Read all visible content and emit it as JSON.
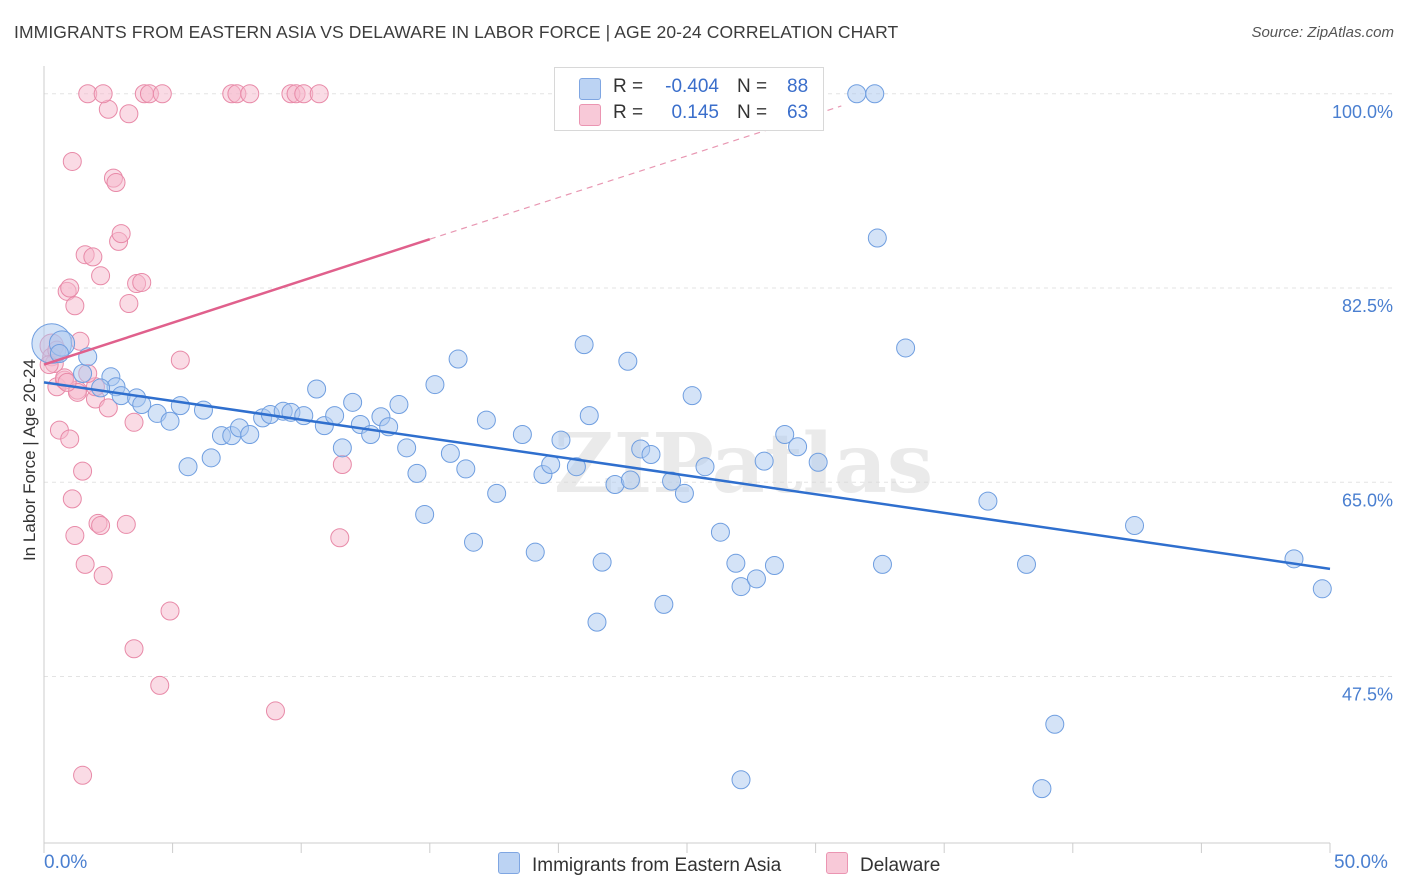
{
  "title": "IMMIGRANTS FROM EASTERN ASIA VS DELAWARE IN LABOR FORCE | AGE 20-24 CORRELATION CHART",
  "source": "Source: ZipAtlas.com",
  "watermark": "ZIPatlas",
  "legend": {
    "series1": {
      "r_label": "R =",
      "r_value": "-0.404",
      "n_label": "N =",
      "n_value": "88"
    },
    "series2": {
      "r_label": "R =",
      "r_value": "0.145",
      "n_label": "N =",
      "n_value": "63"
    }
  },
  "colors": {
    "blue_fill": "#a9c7ef",
    "blue_stroke": "#6f9ee0",
    "blue_line": "#2f6fce",
    "pink_fill": "#f5b8cb",
    "pink_stroke": "#e88aa8",
    "pink_line": "#e0608c",
    "grid": "#e3e3e3",
    "tick_text": "#4a7fd0"
  },
  "chart_data": {
    "type": "scatter",
    "title": "IMMIGRANTS FROM EASTERN ASIA VS DELAWARE IN LABOR FORCE | AGE 20-24 CORRELATION CHART",
    "xlabel": "",
    "ylabel": "In Labor Force | Age 20-24",
    "xlim": [
      0,
      50
    ],
    "ylim": [
      32.5,
      102.5
    ],
    "x_tick_labels": [
      "0.0%",
      "50.0%"
    ],
    "y_ticks": [
      100.0,
      82.5,
      65.0,
      47.5
    ],
    "y_tick_labels": [
      "100.0%",
      "82.5%",
      "65.0%",
      "47.5%"
    ],
    "series": [
      {
        "name": "Immigrants from Eastern Asia",
        "color": "blue",
        "trend": {
          "x0": 0.0,
          "y0": 74.0,
          "x1": 50.0,
          "y1": 57.2
        },
        "points": [
          [
            0.3,
            77.5,
            2.2
          ],
          [
            0.7,
            77.5,
            1.4
          ],
          [
            1.5,
            74.8,
            1
          ],
          [
            2.6,
            74.5,
            1
          ],
          [
            2.8,
            73.6,
            1
          ],
          [
            3.0,
            72.8,
            1
          ],
          [
            3.6,
            72.6,
            1
          ],
          [
            3.8,
            72.0,
            1
          ],
          [
            4.4,
            71.2,
            1
          ],
          [
            4.9,
            70.5,
            1
          ],
          [
            5.3,
            71.9,
            1
          ],
          [
            5.6,
            66.4,
            1
          ],
          [
            6.2,
            71.5,
            1
          ],
          [
            6.5,
            67.2,
            1
          ],
          [
            6.9,
            69.2,
            1
          ],
          [
            7.3,
            69.2,
            1
          ],
          [
            7.6,
            69.9,
            1
          ],
          [
            8.0,
            69.3,
            1
          ],
          [
            8.5,
            70.8,
            1
          ],
          [
            8.8,
            71.1,
            1
          ],
          [
            9.3,
            71.4,
            1
          ],
          [
            9.6,
            71.3,
            1
          ],
          [
            10.1,
            71.0,
            1
          ],
          [
            10.6,
            73.4,
            1
          ],
          [
            10.9,
            70.1,
            1
          ],
          [
            11.3,
            71.0,
            1
          ],
          [
            11.6,
            68.1,
            1
          ],
          [
            12.0,
            72.2,
            1
          ],
          [
            12.3,
            70.2,
            1
          ],
          [
            12.7,
            69.3,
            1
          ],
          [
            13.1,
            70.9,
            1
          ],
          [
            13.4,
            70.0,
            1
          ],
          [
            13.8,
            72.0,
            1
          ],
          [
            14.1,
            68.1,
            1
          ],
          [
            14.5,
            65.8,
            1
          ],
          [
            14.8,
            62.1,
            1
          ],
          [
            15.2,
            73.8,
            1
          ],
          [
            15.8,
            67.6,
            1
          ],
          [
            16.1,
            76.1,
            1
          ],
          [
            16.4,
            66.2,
            1
          ],
          [
            16.7,
            59.6,
            1
          ],
          [
            17.2,
            70.6,
            1
          ],
          [
            17.6,
            64.0,
            1
          ],
          [
            18.6,
            69.3,
            1
          ],
          [
            19.1,
            58.7,
            1
          ],
          [
            19.4,
            65.7,
            1
          ],
          [
            19.7,
            66.6,
            1
          ],
          [
            20.1,
            68.8,
            1
          ],
          [
            20.7,
            66.4,
            1
          ],
          [
            21.0,
            77.4,
            1
          ],
          [
            21.2,
            71.0,
            1
          ],
          [
            21.5,
            52.4,
            1
          ],
          [
            21.7,
            57.8,
            1
          ],
          [
            22.2,
            64.8,
            1
          ],
          [
            22.7,
            75.9,
            1
          ],
          [
            22.8,
            65.2,
            1
          ],
          [
            23.2,
            68.0,
            1
          ],
          [
            23.6,
            67.5,
            1
          ],
          [
            24.1,
            54.0,
            1
          ],
          [
            24.4,
            65.1,
            1
          ],
          [
            24.9,
            64.0,
            1
          ],
          [
            25.2,
            72.8,
            1
          ],
          [
            25.7,
            66.4,
            1
          ],
          [
            26.3,
            60.5,
            1
          ],
          [
            26.9,
            57.7,
            1
          ],
          [
            27.1,
            55.6,
            1
          ],
          [
            27.7,
            56.3,
            1
          ],
          [
            28.0,
            66.9,
            1
          ],
          [
            28.4,
            57.5,
            1
          ],
          [
            28.8,
            69.3,
            1
          ],
          [
            29.3,
            68.2,
            1
          ],
          [
            30.1,
            66.8,
            1
          ],
          [
            31.6,
            100.0,
            1
          ],
          [
            32.3,
            100.0,
            1
          ],
          [
            32.4,
            87.0,
            1
          ],
          [
            32.6,
            57.6,
            1
          ],
          [
            33.5,
            77.1,
            1
          ],
          [
            27.1,
            38.2,
            1
          ],
          [
            36.7,
            63.3,
            1
          ],
          [
            38.2,
            57.6,
            1
          ],
          [
            38.8,
            37.4,
            1
          ],
          [
            39.3,
            43.2,
            1
          ],
          [
            42.4,
            61.1,
            1
          ],
          [
            48.6,
            58.1,
            1
          ],
          [
            49.7,
            55.4,
            1
          ],
          [
            0.6,
            76.6,
            1
          ],
          [
            1.7,
            76.3,
            1
          ],
          [
            2.2,
            73.5,
            1
          ]
        ]
      },
      {
        "name": "Delaware",
        "color": "pink",
        "trend": {
          "x0": 0.0,
          "y0": 75.6,
          "x1": 15.0,
          "y1": 86.9,
          "dash_to_x": 31.0,
          "dash_to_y": 98.9
        },
        "points": [
          [
            0.3,
            77.3,
            1.3
          ],
          [
            0.3,
            76.3,
            1
          ],
          [
            0.4,
            75.7,
            1
          ],
          [
            0.5,
            73.6,
            1
          ],
          [
            0.6,
            69.7,
            1
          ],
          [
            0.8,
            74.2,
            1
          ],
          [
            0.9,
            82.2,
            1
          ],
          [
            1.0,
            82.5,
            1
          ],
          [
            1.0,
            68.9,
            1
          ],
          [
            1.1,
            93.9,
            1
          ],
          [
            1.2,
            60.2,
            1
          ],
          [
            1.2,
            80.9,
            1
          ],
          [
            1.3,
            73.3,
            1
          ],
          [
            1.4,
            77.7,
            1
          ],
          [
            1.5,
            66.0,
            1
          ],
          [
            1.6,
            57.6,
            1
          ],
          [
            1.6,
            85.5,
            1
          ],
          [
            1.7,
            100.0,
            1
          ],
          [
            1.9,
            85.3,
            1
          ],
          [
            2.0,
            72.5,
            1
          ],
          [
            2.1,
            61.3,
            1
          ],
          [
            2.2,
            83.6,
            1
          ],
          [
            2.3,
            56.6,
            1
          ],
          [
            2.5,
            71.7,
            1
          ],
          [
            2.5,
            98.6,
            1
          ],
          [
            2.7,
            92.4,
            1
          ],
          [
            2.8,
            92.0,
            1
          ],
          [
            2.9,
            86.7,
            1
          ],
          [
            3.0,
            87.4,
            1
          ],
          [
            3.2,
            61.2,
            1
          ],
          [
            3.3,
            81.1,
            1
          ],
          [
            3.3,
            98.2,
            1
          ],
          [
            3.5,
            50.0,
            1
          ],
          [
            3.6,
            82.9,
            1
          ],
          [
            3.5,
            70.4,
            1
          ],
          [
            3.8,
            83.0,
            1
          ],
          [
            3.9,
            100.0,
            1
          ],
          [
            4.1,
            100.0,
            1
          ],
          [
            4.6,
            100.0,
            1
          ],
          [
            4.5,
            46.7,
            1
          ],
          [
            4.9,
            53.4,
            1
          ],
          [
            5.3,
            76.0,
            1
          ],
          [
            7.3,
            100.0,
            1
          ],
          [
            7.5,
            100.0,
            1
          ],
          [
            8.0,
            100.0,
            1
          ],
          [
            9.0,
            44.4,
            1
          ],
          [
            9.6,
            100.0,
            1
          ],
          [
            9.8,
            100.0,
            1
          ],
          [
            10.1,
            100.0,
            1
          ],
          [
            10.7,
            100.0,
            1
          ],
          [
            11.6,
            66.6,
            1
          ],
          [
            11.5,
            60.0,
            1
          ],
          [
            1.5,
            38.6,
            1
          ],
          [
            1.1,
            63.5,
            1
          ],
          [
            0.8,
            74.4,
            1
          ],
          [
            2.2,
            61.1,
            1
          ],
          [
            1.3,
            73.1,
            1
          ],
          [
            2.0,
            73.6,
            1
          ],
          [
            0.2,
            75.6,
            1
          ],
          [
            0.5,
            76.9,
            1
          ],
          [
            2.3,
            100.0,
            1
          ],
          [
            0.9,
            74.0,
            1
          ],
          [
            1.7,
            74.8,
            1
          ]
        ]
      }
    ]
  }
}
